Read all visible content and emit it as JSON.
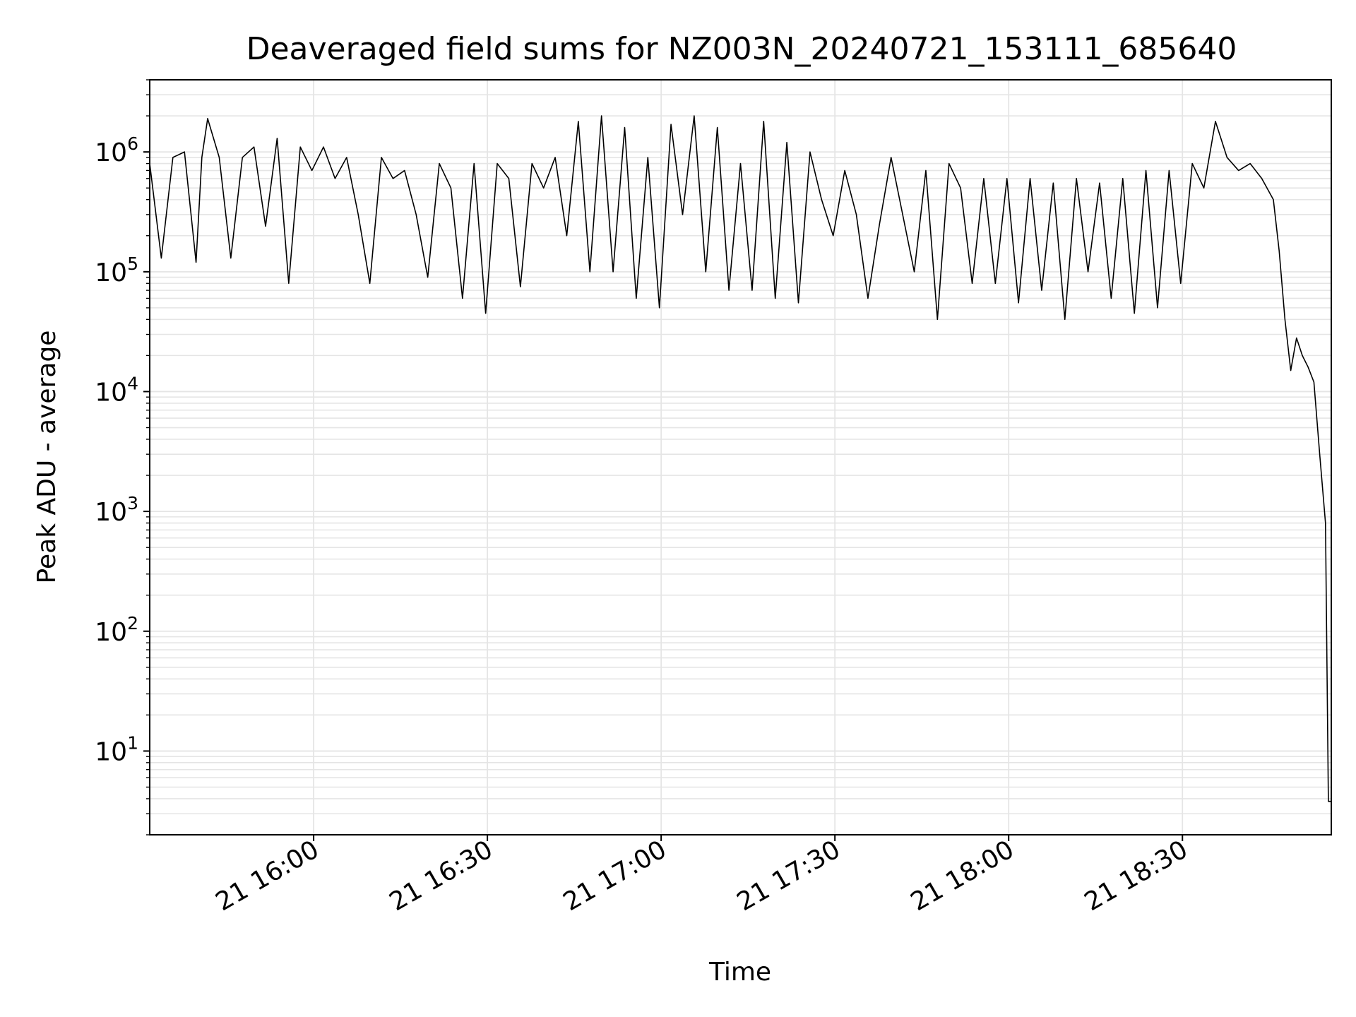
{
  "chart_data": {
    "type": "line",
    "title": "Deaveraged field sums for NZ003N_20240721_153111_685640",
    "xlabel": "Time",
    "ylabel": "Peak ADU - average",
    "yscale": "log",
    "xlim": [
      "2024-07-21 15:31:42",
      "2024-07-21 18:55:42"
    ],
    "ylim": [
      2,
      4000000
    ],
    "grid": true,
    "legend": "none",
    "line_color": "#000000",
    "grid_color": "#e5e5e5",
    "x_ticks": [
      {
        "t": "2024-07-21 16:00",
        "label": "21 16:00"
      },
      {
        "t": "2024-07-21 16:30",
        "label": "21 16:30"
      },
      {
        "t": "2024-07-21 17:00",
        "label": "21 17:00"
      },
      {
        "t": "2024-07-21 17:30",
        "label": "21 17:30"
      },
      {
        "t": "2024-07-21 18:00",
        "label": "21 18:00"
      },
      {
        "t": "2024-07-21 18:30",
        "label": "21 18:30"
      }
    ],
    "y_ticks": [
      {
        "value": 10,
        "base": "10",
        "exp": "1"
      },
      {
        "value": 100,
        "base": "10",
        "exp": "2"
      },
      {
        "value": 1000,
        "base": "10",
        "exp": "3"
      },
      {
        "value": 10000,
        "base": "10",
        "exp": "4"
      },
      {
        "value": 100000,
        "base": "10",
        "exp": "5"
      },
      {
        "value": 1000000,
        "base": "10",
        "exp": "6"
      }
    ],
    "series": [
      {
        "x": [
          "2024-07-21 15:31:42",
          "2024-07-21 15:33:42",
          "2024-07-21 15:35:42",
          "2024-07-21 15:37:42",
          "2024-07-21 15:39:42",
          "2024-07-21 15:40:42",
          "2024-07-21 15:41:42",
          "2024-07-21 15:43:42",
          "2024-07-21 15:45:42",
          "2024-07-21 15:47:42",
          "2024-07-21 15:49:42",
          "2024-07-21 15:51:42",
          "2024-07-21 15:53:42",
          "2024-07-21 15:55:42",
          "2024-07-21 15:57:42",
          "2024-07-21 15:59:42",
          "2024-07-21 16:01:42",
          "2024-07-21 16:03:42",
          "2024-07-21 16:05:42",
          "2024-07-21 16:07:42",
          "2024-07-21 16:09:42",
          "2024-07-21 16:11:42",
          "2024-07-21 16:13:42",
          "2024-07-21 16:15:42",
          "2024-07-21 16:17:42",
          "2024-07-21 16:19:42",
          "2024-07-21 16:21:42",
          "2024-07-21 16:23:42",
          "2024-07-21 16:25:42",
          "2024-07-21 16:27:42",
          "2024-07-21 16:29:42",
          "2024-07-21 16:31:42",
          "2024-07-21 16:33:42",
          "2024-07-21 16:35:42",
          "2024-07-21 16:37:42",
          "2024-07-21 16:39:42",
          "2024-07-21 16:41:42",
          "2024-07-21 16:43:42",
          "2024-07-21 16:45:42",
          "2024-07-21 16:47:42",
          "2024-07-21 16:49:42",
          "2024-07-21 16:51:42",
          "2024-07-21 16:53:42",
          "2024-07-21 16:55:42",
          "2024-07-21 16:57:42",
          "2024-07-21 16:59:42",
          "2024-07-21 17:01:42",
          "2024-07-21 17:03:42",
          "2024-07-21 17:05:42",
          "2024-07-21 17:07:42",
          "2024-07-21 17:09:42",
          "2024-07-21 17:11:42",
          "2024-07-21 17:13:42",
          "2024-07-21 17:15:42",
          "2024-07-21 17:17:42",
          "2024-07-21 17:19:42",
          "2024-07-21 17:21:42",
          "2024-07-21 17:23:42",
          "2024-07-21 17:25:42",
          "2024-07-21 17:27:42",
          "2024-07-21 17:29:42",
          "2024-07-21 17:31:42",
          "2024-07-21 17:33:42",
          "2024-07-21 17:35:42",
          "2024-07-21 17:37:42",
          "2024-07-21 17:39:42",
          "2024-07-21 17:41:42",
          "2024-07-21 17:43:42",
          "2024-07-21 17:45:42",
          "2024-07-21 17:47:42",
          "2024-07-21 17:49:42",
          "2024-07-21 17:51:42",
          "2024-07-21 17:53:42",
          "2024-07-21 17:55:42",
          "2024-07-21 17:57:42",
          "2024-07-21 17:59:42",
          "2024-07-21 18:01:42",
          "2024-07-21 18:03:42",
          "2024-07-21 18:05:42",
          "2024-07-21 18:07:42",
          "2024-07-21 18:09:42",
          "2024-07-21 18:11:42",
          "2024-07-21 18:13:42",
          "2024-07-21 18:15:42",
          "2024-07-21 18:17:42",
          "2024-07-21 18:19:42",
          "2024-07-21 18:21:42",
          "2024-07-21 18:23:42",
          "2024-07-21 18:25:42",
          "2024-07-21 18:27:42",
          "2024-07-21 18:29:42",
          "2024-07-21 18:31:42",
          "2024-07-21 18:33:42",
          "2024-07-21 18:35:42",
          "2024-07-21 18:37:42",
          "2024-07-21 18:39:42",
          "2024-07-21 18:41:42",
          "2024-07-21 18:43:42",
          "2024-07-21 18:45:42",
          "2024-07-21 18:46:42",
          "2024-07-21 18:47:42",
          "2024-07-21 18:48:42",
          "2024-07-21 18:49:42",
          "2024-07-21 18:50:42",
          "2024-07-21 18:51:42",
          "2024-07-21 18:52:42",
          "2024-07-21 18:53:42",
          "2024-07-21 18:54:42",
          "2024-07-21 18:55:12",
          "2024-07-21 18:55:42"
        ],
        "values": [
          800000,
          130000,
          900000,
          1000000,
          120000,
          900000,
          1900000,
          900000,
          130000,
          900000,
          1100000,
          240000,
          1300000,
          80000,
          1100000,
          700000,
          1100000,
          600000,
          900000,
          300000,
          80000,
          900000,
          600000,
          700000,
          300000,
          90000,
          800000,
          500000,
          60000,
          800000,
          45000,
          800000,
          600000,
          75000,
          800000,
          500000,
          900000,
          200000,
          1800000,
          100000,
          2000000,
          100000,
          1600000,
          60000,
          900000,
          50000,
          1700000,
          300000,
          2000000,
          100000,
          1600000,
          70000,
          800000,
          70000,
          1800000,
          60000,
          1200000,
          55000,
          1000000,
          400000,
          200000,
          700000,
          300000,
          60000,
          250000,
          900000,
          300000,
          100000,
          700000,
          40000,
          800000,
          500000,
          80000,
          600000,
          80000,
          600000,
          55000,
          600000,
          70000,
          550000,
          40000,
          600000,
          100000,
          550000,
          60000,
          600000,
          45000,
          700000,
          50000,
          700000,
          80000,
          800000,
          500000,
          1800000,
          900000,
          700000,
          800000,
          600000,
          400000,
          150000,
          40000,
          15000,
          28000,
          20000,
          16000,
          12000,
          3000,
          800,
          3.8,
          3.8
        ]
      }
    ]
  }
}
